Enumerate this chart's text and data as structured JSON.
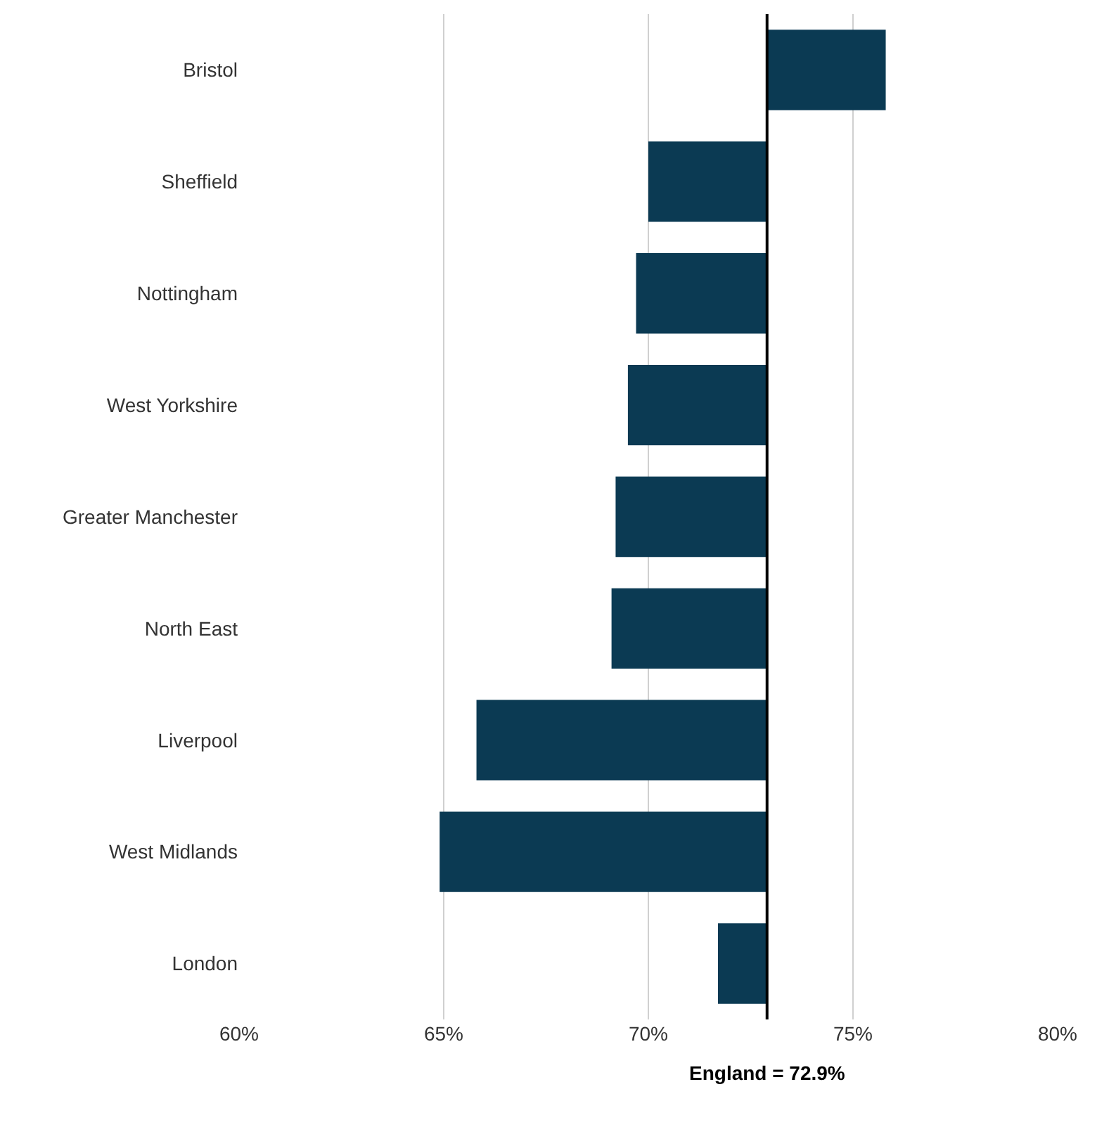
{
  "chart_data": {
    "type": "bar",
    "orientation": "horizontal",
    "categories": [
      "Bristol",
      "Sheffield",
      "Nottingham",
      "West Yorkshire",
      "Greater Manchester",
      "North East",
      "Liverpool",
      "West Midlands",
      "London"
    ],
    "base": [
      72.9,
      72.9,
      72.9,
      72.9,
      72.9,
      72.9,
      72.9,
      72.9,
      72.9
    ],
    "values": [
      2.9,
      -2.9,
      -3.2,
      -3.4,
      -3.7,
      -3.8,
      -7.1,
      -8.0,
      -1.2
    ],
    "color": "#0b3a53",
    "xlim": [
      60,
      80
    ],
    "xticks": [
      {
        "value": 60,
        "label": "60%"
      },
      {
        "value": 65,
        "label": "65%"
      },
      {
        "value": 70,
        "label": "70%"
      },
      {
        "value": 75,
        "label": "75%"
      },
      {
        "value": 80,
        "label": "80%"
      }
    ],
    "grid": "x",
    "ref_lines": [
      {
        "axis": "x",
        "value": 72.9,
        "label": "England = 72.9%",
        "color": "#000000"
      }
    ]
  }
}
